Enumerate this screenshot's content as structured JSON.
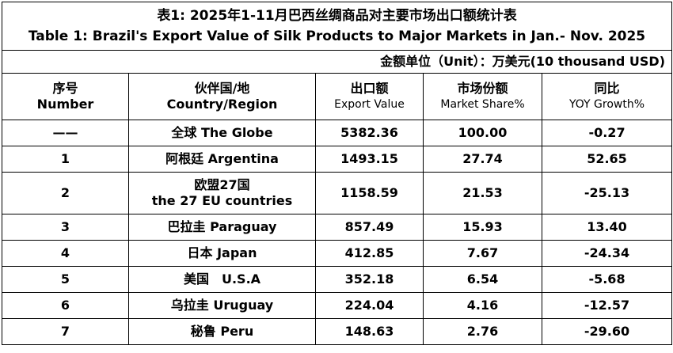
{
  "title": {
    "cn": "表1: 2025年1-11月巴西丝绸商品对主要市场出口额统计表",
    "en": "Table 1: Brazil's Export Value of Silk Products to Major Markets in Jan.- Nov. 2025"
  },
  "unit": "金额单位（Unit）：万美元(10 thousand USD)",
  "headers": {
    "number": {
      "cn": "序号",
      "en": "Number"
    },
    "country": {
      "cn": "伙伴国/地",
      "en": "Country/Region"
    },
    "export": {
      "cn": "出口额",
      "en": "Export Value"
    },
    "share": {
      "cn": "市场份额",
      "en": "Market Share%"
    },
    "yoy": {
      "cn": "同比",
      "en": "YOY Growth%"
    }
  },
  "rows": [
    {
      "number": "——",
      "country": "全球 The Globe",
      "country2": "",
      "export": "5382.36",
      "share": "100.00",
      "yoy": "-0.27"
    },
    {
      "number": "1",
      "country": "阿根廷 Argentina",
      "country2": "",
      "export": "1493.15",
      "share": "27.74",
      "yoy": "52.65"
    },
    {
      "number": "2",
      "country": "欧盟27国",
      "country2": "the 27 EU countries",
      "export": "1158.59",
      "share": "21.53",
      "yoy": "-25.13"
    },
    {
      "number": "3",
      "country": "巴拉圭 Paraguay",
      "country2": "",
      "export": "857.49",
      "share": "15.93",
      "yoy": "13.40"
    },
    {
      "number": "4",
      "country": "日本 Japan",
      "country2": "",
      "export": "412.85",
      "share": "7.67",
      "yoy": "-24.34"
    },
    {
      "number": "5",
      "country": "美国　U.S.A",
      "country2": "",
      "export": "352.18",
      "share": "6.54",
      "yoy": "-5.68"
    },
    {
      "number": "6",
      "country": "乌拉圭 Uruguay",
      "country2": "",
      "export": "224.04",
      "share": "4.16",
      "yoy": "-12.57"
    },
    {
      "number": "7",
      "country": "秘鲁 Peru",
      "country2": "",
      "export": "148.63",
      "share": "2.76",
      "yoy": "-29.60"
    }
  ]
}
